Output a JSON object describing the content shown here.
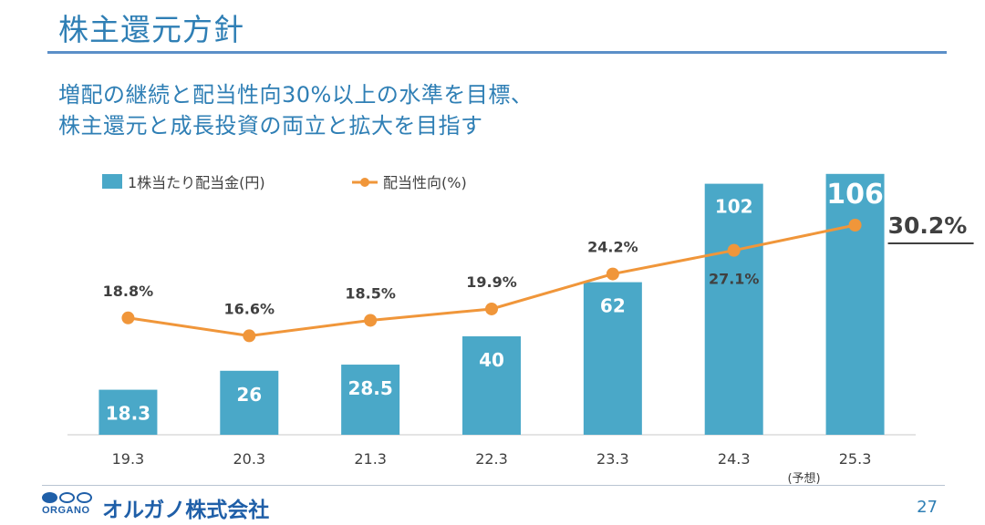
{
  "page": {
    "title": "株主還元方針",
    "subtitle_line1": "増配の継続と配当性向30%以上の水準を目標、",
    "subtitle_line2": "株主還元と成長投資の両立と拡大を目指す",
    "company_name": "オルガノ株式会社",
    "logo_text": "ORGANO",
    "page_number": "27"
  },
  "colors": {
    "title": "#2f7fb5",
    "bar": "#4aa8c8",
    "line": "#f0963a",
    "label_dark": "#404040",
    "label_white": "#ffffff"
  },
  "chart_data": {
    "type": "bar",
    "categories": [
      "19.3",
      "20.3",
      "21.3",
      "22.3",
      "23.3",
      "24.3",
      "25.3"
    ],
    "category_note": "(予想)",
    "category_note_index": 6,
    "series": [
      {
        "name": "1株当たり配当金(円)",
        "type": "bar",
        "values": [
          18.3,
          26,
          28.5,
          40,
          62,
          102,
          106
        ],
        "labels": [
          "18.3",
          "26",
          "28.5",
          "40",
          "62",
          "102",
          "106"
        ]
      },
      {
        "name": "配当性向(%)",
        "type": "line",
        "values": [
          18.8,
          16.6,
          18.5,
          19.9,
          24.2,
          27.1,
          30.2
        ],
        "labels": [
          "18.8%",
          "16.6%",
          "18.5%",
          "19.9%",
          "24.2%",
          "27.1%",
          "30.2%"
        ]
      }
    ],
    "ylim_bar": [
      0,
      110
    ],
    "ylim_line": [
      5,
      33
    ],
    "legend_position": "top-left",
    "gridlines": false
  }
}
